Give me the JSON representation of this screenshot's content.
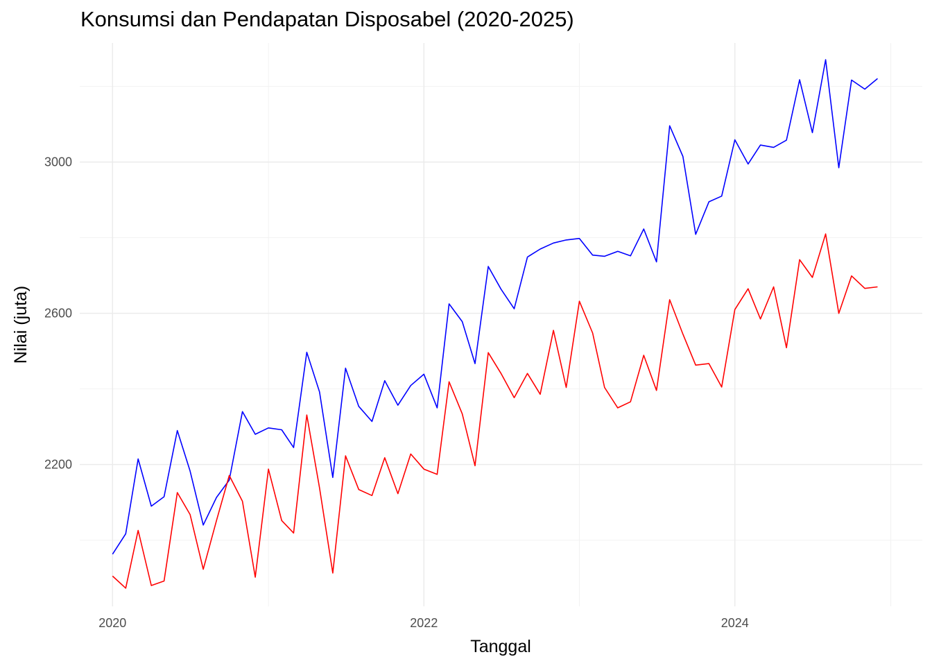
{
  "chart_data": {
    "type": "line",
    "title": "Konsumsi dan Pendapatan Disposabel (2020-2025)",
    "xlabel": "Tanggal",
    "ylabel": "Nilai (juta)",
    "x_ticks": [
      "2020",
      "2022",
      "2024"
    ],
    "y_ticks": [
      2200,
      2600,
      3000
    ],
    "xlim": [
      "2019-10-16",
      "2025-03-16"
    ],
    "ylim": [
      1825,
      3315
    ],
    "grid": true,
    "legend": "none",
    "x": [
      "2020-01-01",
      "2020-02-01",
      "2020-03-01",
      "2020-04-01",
      "2020-05-01",
      "2020-06-01",
      "2020-07-01",
      "2020-08-01",
      "2020-09-01",
      "2020-10-01",
      "2020-11-01",
      "2020-12-01",
      "2021-01-01",
      "2021-02-01",
      "2021-03-01",
      "2021-04-01",
      "2021-05-01",
      "2021-06-01",
      "2021-07-01",
      "2021-08-01",
      "2021-09-01",
      "2021-10-01",
      "2021-11-01",
      "2021-12-01",
      "2022-01-01",
      "2022-02-01",
      "2022-03-01",
      "2022-04-01",
      "2022-05-01",
      "2022-06-01",
      "2022-07-01",
      "2022-08-01",
      "2022-09-01",
      "2022-10-01",
      "2022-11-01",
      "2022-12-01",
      "2023-01-01",
      "2023-02-01",
      "2023-03-01",
      "2023-04-01",
      "2023-05-01",
      "2023-06-01",
      "2023-07-01",
      "2023-08-01",
      "2023-09-01",
      "2023-10-01",
      "2023-11-01",
      "2023-12-01",
      "2024-01-01",
      "2024-02-01",
      "2024-03-01",
      "2024-04-01",
      "2024-05-01",
      "2024-06-01",
      "2024-07-01",
      "2024-08-01",
      "2024-09-01",
      "2024-10-01",
      "2024-11-01",
      "2024-12-01"
    ],
    "series": [
      {
        "color": "#0000ff",
        "values": [
          1963,
          2017,
          2215,
          2090,
          2115,
          2290,
          2183,
          2040,
          2113,
          2159,
          2340,
          2280,
          2297,
          2292,
          2245,
          2497,
          2392,
          2166,
          2455,
          2354,
          2314,
          2422,
          2357,
          2409,
          2439,
          2350,
          2625,
          2578,
          2467,
          2724,
          2664,
          2612,
          2749,
          2770,
          2786,
          2794,
          2798,
          2754,
          2751,
          2764,
          2752,
          2823,
          2736,
          3096,
          3015,
          2809,
          2895,
          2910,
          3059,
          2995,
          3045,
          3039,
          3058,
          3218,
          3078,
          3271,
          2985,
          3217,
          3193,
          3221
        ]
      },
      {
        "color": "#ff0000",
        "values": [
          1905,
          1873,
          2026,
          1880,
          1892,
          2126,
          2068,
          1923,
          2052,
          2171,
          2103,
          1902,
          2188,
          2052,
          2019,
          2331,
          2138,
          1913,
          2223,
          2134,
          2118,
          2218,
          2123,
          2228,
          2188,
          2174,
          2419,
          2334,
          2197,
          2496,
          2441,
          2377,
          2441,
          2386,
          2555,
          2404,
          2632,
          2548,
          2404,
          2350,
          2366,
          2489,
          2396,
          2636,
          2545,
          2463,
          2467,
          2405,
          2610,
          2665,
          2585,
          2670,
          2509,
          2742,
          2695,
          2810,
          2600,
          2699,
          2666,
          2670
        ]
      }
    ]
  }
}
